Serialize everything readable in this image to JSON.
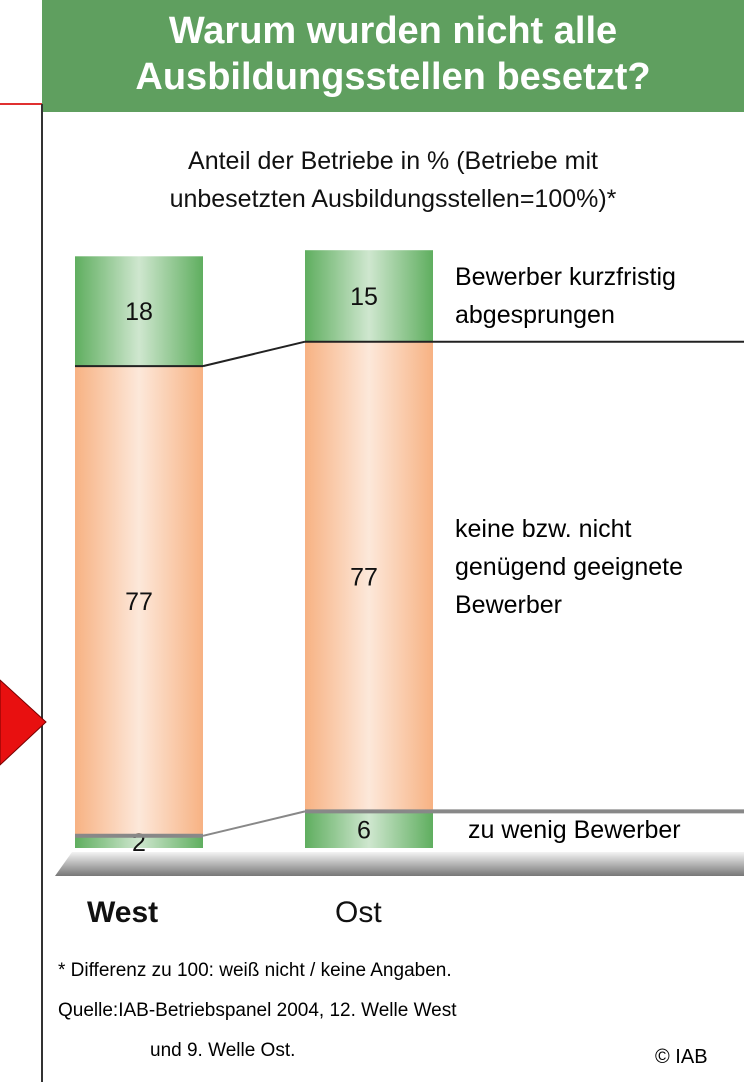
{
  "chart_data": {
    "type": "bar",
    "stacked": true,
    "title": "Warum wurden nicht alle\nAusbildungsstellen besetzt?",
    "subtitle": "Anteil der Betriebe in % (Betriebe mit\nunbesetzten Ausbildungsstellen=100%)*",
    "categories": [
      "West",
      "Ost"
    ],
    "series": [
      {
        "name": "zu wenig Bewerber",
        "color": "#5fae5f",
        "values": [
          2,
          6
        ]
      },
      {
        "name": "keine bzw. nicht\ngenügend geeignete\nBewerber",
        "color": "#f7b283",
        "values": [
          77,
          77
        ]
      },
      {
        "name": "Bewerber kurzfristig\nabgesprungen",
        "color": "#5fae5f",
        "values": [
          18,
          15
        ]
      }
    ],
    "ylim": [
      0,
      100
    ],
    "footnotes": [
      "* Differenz zu 100: weiß nicht / keine Angaben.",
      "Quelle:IAB-Betriebspanel 2004, 12. Welle West",
      "und 9. Welle Ost."
    ],
    "copyright": "© IAB"
  }
}
